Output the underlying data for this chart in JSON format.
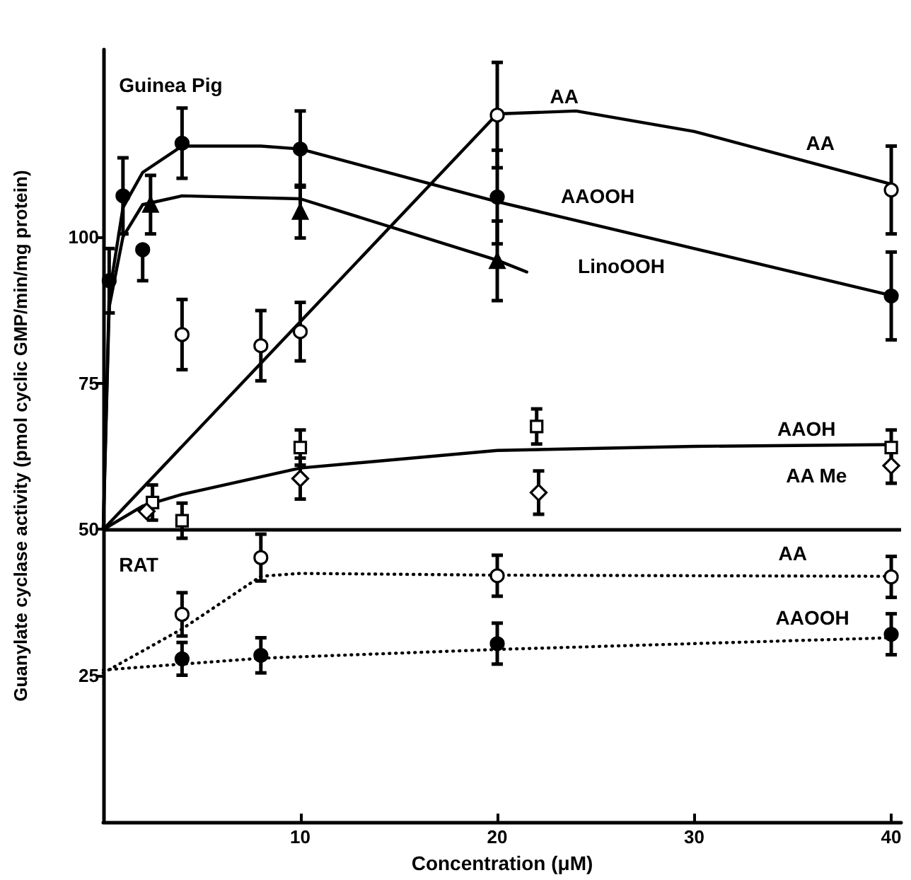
{
  "chart_data": {
    "type": "scatter",
    "xlabel": "Concentration (μM)",
    "ylabel": "Guanylate cyclase activity (pmol cyclic GMP/min/mg protein)",
    "xlim": [
      0,
      40.5
    ],
    "xticks": [
      10,
      20,
      30,
      40
    ],
    "ylim": [
      0,
      132
    ],
    "yticks": [
      25,
      50,
      75,
      100
    ],
    "grid": false,
    "ref_lines": [
      {
        "axis": "y",
        "value": 50,
        "color": "#000000"
      }
    ],
    "annotations": [
      "Guinea Pig",
      "RAT",
      "AA",
      "AA",
      "AAOOH",
      "LinoOOH",
      "AAOH",
      "AA Me",
      "AA",
      "AAOOH"
    ],
    "series": [
      {
        "type": "line",
        "marker": "none",
        "line_style": "solid",
        "color": "#000000",
        "x": [
          0,
          0.3,
          1,
          2,
          4,
          8,
          10,
          20,
          40
        ],
        "values": [
          50,
          90,
          105,
          111,
          115.5,
          115.5,
          115,
          106,
          90
        ]
      },
      {
        "type": "line",
        "marker": "none",
        "line_style": "solid",
        "color": "#000000",
        "x": [
          0,
          0.3,
          1,
          2,
          4,
          10,
          20,
          21.5
        ],
        "values": [
          50,
          88,
          100,
          105.5,
          107,
          106.5,
          96,
          94
        ]
      },
      {
        "type": "line",
        "marker": "none",
        "line_style": "solid",
        "color": "#000000",
        "x": [
          0,
          20,
          24,
          30,
          40
        ],
        "values": [
          50,
          121,
          121.5,
          118,
          109
        ]
      },
      {
        "type": "line",
        "marker": "none",
        "line_style": "solid",
        "color": "#000000",
        "x": [
          0,
          2,
          4,
          10,
          20,
          30,
          40
        ],
        "values": [
          50,
          54,
          56,
          60.5,
          63.5,
          64.2,
          64.5
        ]
      },
      {
        "type": "line",
        "marker": "none",
        "line_style": "dotted",
        "color": "#000000",
        "x": [
          0,
          4,
          8,
          10,
          20,
          40
        ],
        "values": [
          25.5,
          33,
          42,
          42.5,
          42.2,
          42
        ]
      },
      {
        "type": "line",
        "marker": "none",
        "line_style": "dotted",
        "color": "#000000",
        "x": [
          0,
          8,
          20,
          40
        ],
        "values": [
          26,
          28,
          29.5,
          31.5
        ]
      },
      {
        "marker": "circle",
        "color": "#000000",
        "x": [
          0.3,
          1,
          2,
          4,
          10,
          20,
          40
        ],
        "values": [
          92.5,
          107,
          97.8,
          116,
          115,
          106.8,
          89.9
        ],
        "errors": [
          5.5,
          6.5,
          [
            92.5,
            97.8
          ],
          6,
          6.5,
          8,
          7.5
        ]
      },
      {
        "marker": "triangle",
        "color": "#000000",
        "x": [
          2.4,
          10,
          20
        ],
        "values": [
          105.5,
          104.3,
          95.9
        ],
        "errors": [
          5,
          4.5,
          6.8
        ]
      },
      {
        "marker": "circle",
        "color": "#ffffff",
        "x": [
          4,
          8,
          10,
          20,
          40
        ],
        "values": [
          83.3,
          81.4,
          83.8,
          120.8,
          108
        ],
        "errors": [
          6,
          6,
          5,
          9,
          7.5
        ]
      },
      {
        "marker": "square",
        "color": "#ffffff",
        "x": [
          2.5,
          4,
          10,
          22,
          40
        ],
        "values": [
          54.6,
          51.5,
          64,
          67.6,
          64
        ],
        "errors": [
          3,
          3,
          3,
          3,
          3
        ]
      },
      {
        "marker": "diamond",
        "color": "#ffffff",
        "x": [
          2.2,
          10,
          22.1,
          40
        ],
        "values": [
          53.1,
          58.7,
          56.3,
          60.9
        ],
        "errors": [
          null,
          3.5,
          3.7,
          3
        ]
      },
      {
        "marker": "circle",
        "color": "#ffffff",
        "x": [
          4,
          8,
          20,
          40
        ],
        "values": [
          35.5,
          45.2,
          42.1,
          41.9
        ],
        "errors": [
          3.7,
          4,
          3.5,
          3.5
        ]
      },
      {
        "marker": "circle",
        "color": "#000000",
        "x": [
          4,
          8,
          20,
          40
        ],
        "values": [
          27.9,
          28.5,
          30.5,
          32.1
        ],
        "errors": [
          2.8,
          3,
          3.5,
          3.5
        ]
      }
    ]
  }
}
